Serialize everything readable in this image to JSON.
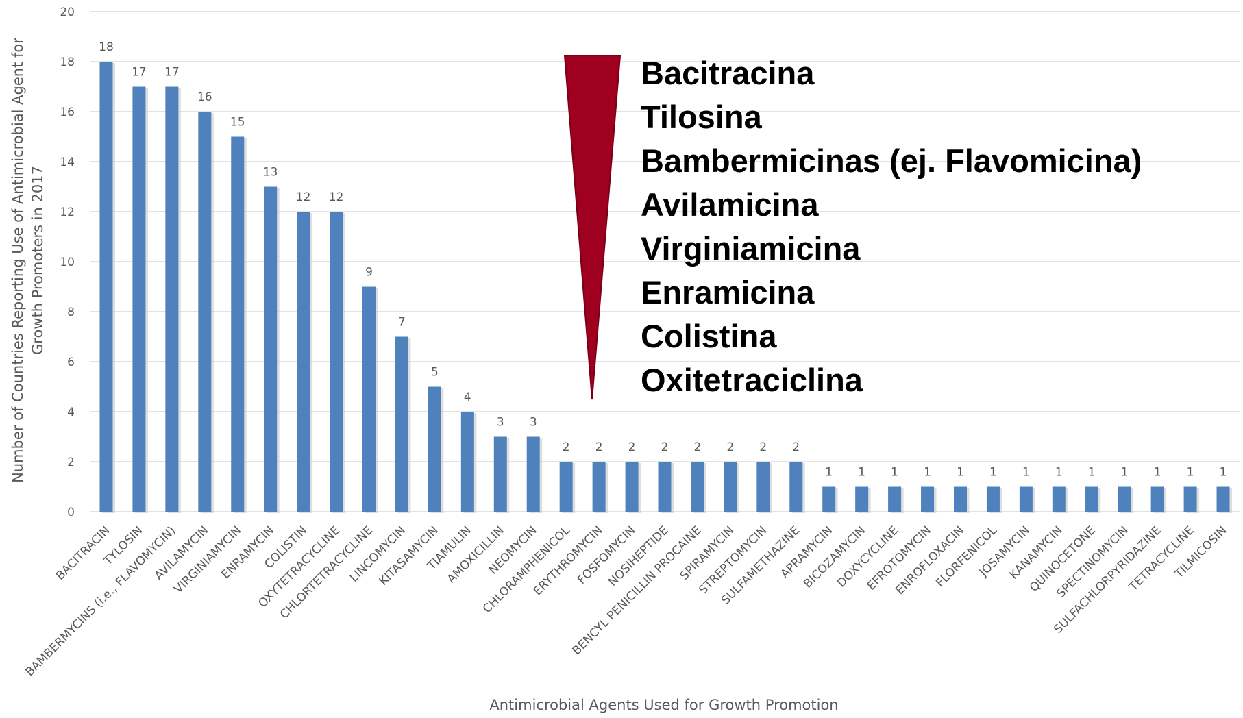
{
  "chart_data": {
    "type": "bar",
    "categories": [
      "BACITRACIN",
      "TYLOSIN",
      "BAMBERMYCINS (i.e., FLAVOMYCIN)",
      "AVILAMYCIN",
      "VIRGINIAMYCIN",
      "ENRAMYCIN",
      "COLISTIN",
      "OXYTETRACYCLINE",
      "CHLORTETRACYCLINE",
      "LINCOMYCIN",
      "KITASAMYCIN",
      "TIAMULIN",
      "AMOXICILLIN",
      "NEOMYCIN",
      "CHLORAMPHENICOL",
      "ERYTHROMYCIN",
      "FOSFOMYCIN",
      "NOSIHEPTIDE",
      "BENCYL PENICILLIN PROCAINE",
      "SPIRAMYCIN",
      "STREPTOMYCIN",
      "SULFAMETHAZINE",
      "APRAMYCIN",
      "BICOZAMYCIN",
      "DOXYCYCLINE",
      "EFROTOMYCIN",
      "ENROFLOXACIN",
      "FLORFENICOL",
      "JOSAMYCIN",
      "KANAMYCIN",
      "QUINOCETONE",
      "SPECTINOMYCIN",
      "SULFACHLORPYRIDAZINE",
      "TETRACYCLINE",
      "TILMICOSIN"
    ],
    "values": [
      18,
      17,
      17,
      16,
      15,
      13,
      12,
      12,
      9,
      7,
      5,
      4,
      3,
      3,
      2,
      2,
      2,
      2,
      2,
      2,
      2,
      2,
      1,
      1,
      1,
      1,
      1,
      1,
      1,
      1,
      1,
      1,
      1,
      1,
      1
    ],
    "color": "#4f81bd",
    "ylim": [
      0,
      20
    ],
    "yticks": [
      0,
      2,
      4,
      6,
      8,
      10,
      12,
      14,
      16,
      18,
      20
    ],
    "grid": true,
    "xlabel": "Antimicrobial Agents Used for Growth Promotion",
    "ylabel": [
      "Number of Countries Reporting Use of Antimicrobial Agent for",
      "Growth Promoters in 2017"
    ],
    "annotation": {
      "color": "#a00020",
      "lines": [
        "Bacitracina",
        "Tilosina",
        "Bambermicinas (ej. Flavomicina)",
        "Avilamicina",
        "Virginiamicina",
        "Enramicina",
        "Colistina",
        "Oxitetraciclina"
      ]
    }
  }
}
